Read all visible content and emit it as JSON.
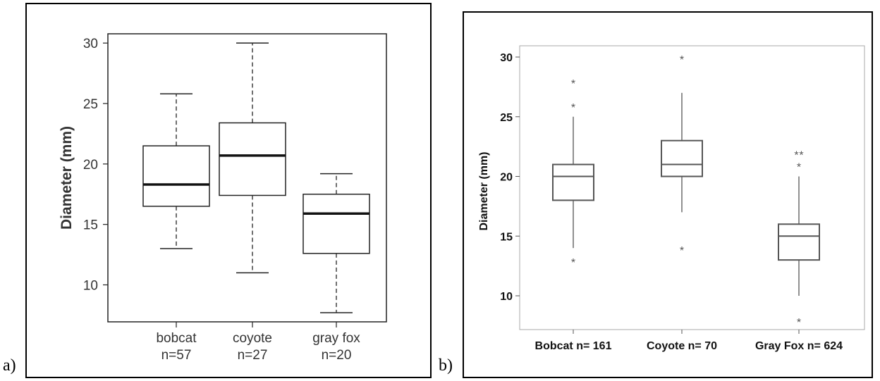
{
  "panel_labels": [
    "a)",
    "b)"
  ],
  "chart_data": [
    {
      "type": "box",
      "ylabel": "Diameter (mm)",
      "xlabel": "",
      "ylim": [
        7,
        31
      ],
      "yticks": [
        10,
        15,
        20,
        25,
        30
      ],
      "categories": [
        {
          "name": "bobcat",
          "n_label": "n=57"
        },
        {
          "name": "coyote",
          "n_label": "n=27"
        },
        {
          "name": "gray fox",
          "n_label": "n=20"
        }
      ],
      "boxes": [
        {
          "whisker_low": 13.0,
          "q1": 16.5,
          "median": 18.3,
          "q3": 21.5,
          "whisker_high": 25.8,
          "outliers": []
        },
        {
          "whisker_low": 11.0,
          "q1": 17.4,
          "median": 20.7,
          "q3": 23.4,
          "whisker_high": 30.0,
          "outliers": []
        },
        {
          "whisker_low": 7.7,
          "q1": 12.6,
          "median": 15.9,
          "q3": 17.5,
          "whisker_high": 19.2,
          "outliers": []
        }
      ],
      "whisker_style": "dashed"
    },
    {
      "type": "box",
      "ylabel": "Diameter (mm)",
      "xlabel": "",
      "ylim": [
        7,
        31
      ],
      "yticks": [
        10,
        15,
        20,
        25,
        30
      ],
      "categories": [
        {
          "name": "Bobcat n= 161"
        },
        {
          "name": "Coyote n= 70"
        },
        {
          "name": "Gray Fox n= 624"
        }
      ],
      "boxes": [
        {
          "whisker_low": 14.0,
          "q1": 18.0,
          "median": 20.0,
          "q3": 21.0,
          "whisker_high": 25.0,
          "outliers": [
            13.0,
            26.0,
            28.0
          ]
        },
        {
          "whisker_low": 17.0,
          "q1": 20.0,
          "median": 21.0,
          "q3": 23.0,
          "whisker_high": 27.0,
          "outliers": [
            14.0,
            30.0
          ]
        },
        {
          "whisker_low": 10.0,
          "q1": 13.0,
          "median": 15.0,
          "q3": 16.0,
          "whisker_high": 20.0,
          "outliers": [
            8.0,
            21.0,
            22.0,
            22.0
          ]
        }
      ],
      "whisker_style": "solid",
      "outlier_marker": "*"
    }
  ]
}
